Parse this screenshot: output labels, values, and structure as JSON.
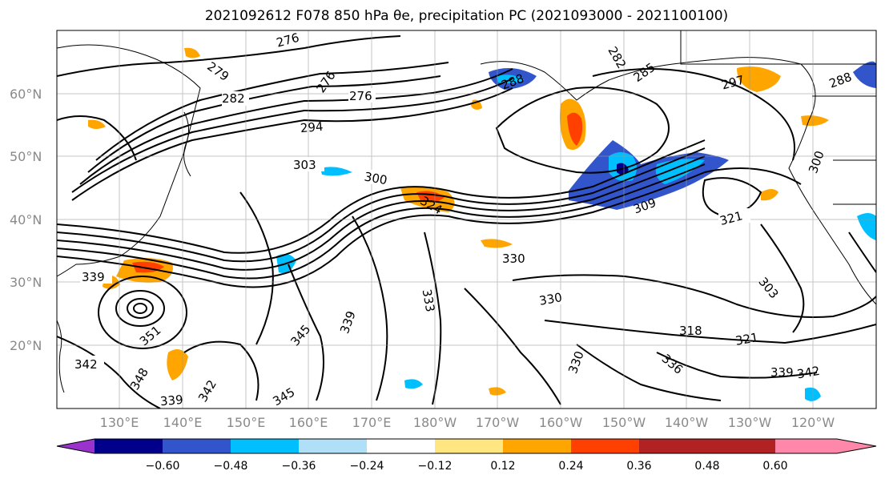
{
  "title": "2021092612 F078 850 hPa θe, precipitation PC (2021093000 - 2021100100)",
  "lat_labels": [
    "60°N",
    "50°N",
    "40°N",
    "30°N",
    "20°N"
  ],
  "lon_labels": [
    "130°E",
    "140°E",
    "150°E",
    "160°E",
    "170°E",
    "180°W",
    "170°W",
    "160°W",
    "150°W",
    "140°W",
    "130°W",
    "120°W"
  ],
  "colorbar": {
    "ticks": [
      "−0.60",
      "−0.48",
      "−0.36",
      "−0.24",
      "−0.12",
      "0.12",
      "0.24",
      "0.36",
      "0.48",
      "0.60"
    ],
    "colors": [
      "#9933cc",
      "#00008b",
      "#3355cc",
      "#00bfff",
      "#b0e0f8",
      "#ffffff",
      "#ffe680",
      "#ffa500",
      "#ff4000",
      "#b22222",
      "#ff88aa"
    ]
  },
  "contour_labels": [
    "276",
    "276",
    "276",
    "279",
    "282",
    "282",
    "285",
    "288",
    "288",
    "294",
    "297",
    "300",
    "300",
    "303",
    "309",
    "321",
    "324",
    "330",
    "330",
    "333",
    "339",
    "339",
    "339",
    "342",
    "342",
    "342",
    "345",
    "345",
    "348",
    "351",
    "303",
    "318",
    "321",
    "330",
    "336",
    "339"
  ]
}
